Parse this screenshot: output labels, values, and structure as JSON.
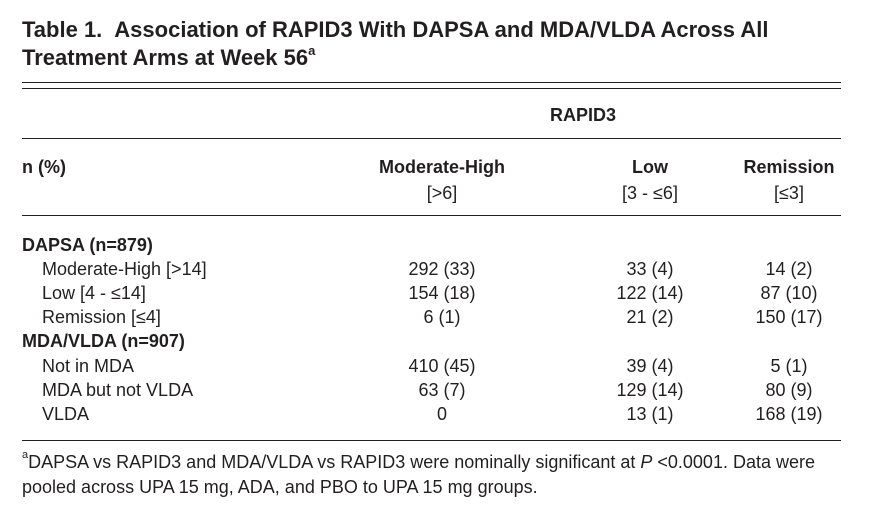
{
  "title": {
    "number": "Table 1.",
    "text": "Association of RAPID3 With DAPSA and MDA/VLDA Across All Treatment Arms at Week 56",
    "superscript": "a"
  },
  "header": {
    "group_label": "RAPID3",
    "row_header": "n (%)",
    "columns": [
      {
        "name": "Moderate-High",
        "range": "[>6]"
      },
      {
        "name": "Low",
        "range": "[3 - ≤6]"
      },
      {
        "name": "Remission",
        "range": "[≤3]"
      }
    ]
  },
  "sections": [
    {
      "label": "DAPSA (n=879)",
      "rows": [
        {
          "label": "Moderate-High [>14]",
          "values": [
            "292 (33)",
            "33 (4)",
            "14 (2)"
          ]
        },
        {
          "label": "Low [4 - ≤14]",
          "values": [
            "154 (18)",
            "122 (14)",
            "87 (10)"
          ]
        },
        {
          "label": "Remission [≤4]",
          "values": [
            "6 (1)",
            "21 (2)",
            "150 (17)"
          ]
        }
      ]
    },
    {
      "label": "MDA/VLDA (n=907)",
      "rows": [
        {
          "label": "Not in MDA",
          "values": [
            "410 (45)",
            "39 (4)",
            "5 (1)"
          ]
        },
        {
          "label": "MDA but not VLDA",
          "values": [
            "63 (7)",
            "129 (14)",
            "80 (9)"
          ]
        },
        {
          "label": "VLDA",
          "values": [
            "0",
            "13 (1)",
            "168 (19)"
          ]
        }
      ]
    }
  ],
  "footnote": {
    "marker": "a",
    "text_before": "DAPSA vs RAPID3 and MDA/VLDA vs RAPID3 were nominally significant at ",
    "p_symbol": "P",
    "text_after": " <0.0001. Data were pooled across UPA 15 mg, ADA, and PBO to UPA 15 mg groups."
  }
}
